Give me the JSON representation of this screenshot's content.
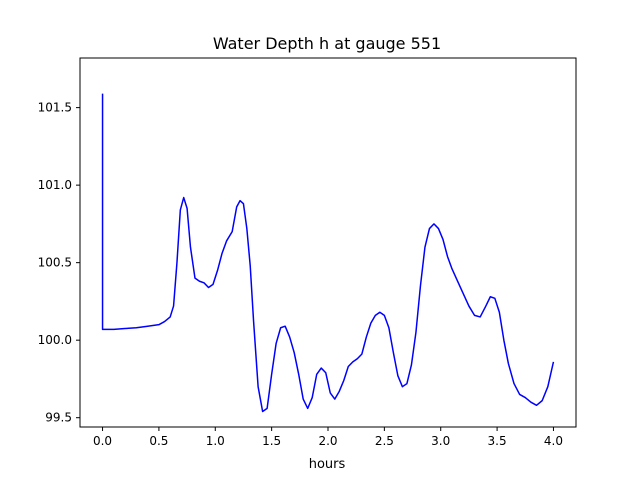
{
  "chart_data": {
    "type": "line",
    "title": "Water Depth h at gauge 551",
    "xlabel": "hours",
    "ylabel": "",
    "xlim": [
      -0.2,
      4.2
    ],
    "ylim": [
      99.44,
      101.82
    ],
    "xticks": [
      0.0,
      0.5,
      1.0,
      1.5,
      2.0,
      2.5,
      3.0,
      3.5,
      4.0
    ],
    "xtick_labels": [
      "0.0",
      "0.5",
      "1.0",
      "1.5",
      "2.0",
      "2.5",
      "3.0",
      "3.5",
      "4.0"
    ],
    "yticks": [
      99.5,
      100.0,
      100.5,
      101.0,
      101.5
    ],
    "ytick_labels": [
      "99.5",
      "100.0",
      "100.5",
      "101.0",
      "101.5"
    ],
    "grid": false,
    "legend": "none",
    "series": [
      {
        "color": "#0000ff",
        "x": [
          0.0,
          0.0,
          0.01,
          0.1,
          0.2,
          0.3,
          0.4,
          0.5,
          0.55,
          0.6,
          0.63,
          0.66,
          0.69,
          0.72,
          0.75,
          0.78,
          0.82,
          0.86,
          0.9,
          0.94,
          0.98,
          1.02,
          1.06,
          1.1,
          1.15,
          1.19,
          1.22,
          1.25,
          1.28,
          1.31,
          1.34,
          1.38,
          1.42,
          1.46,
          1.5,
          1.54,
          1.58,
          1.62,
          1.66,
          1.7,
          1.74,
          1.78,
          1.82,
          1.86,
          1.9,
          1.94,
          1.98,
          2.02,
          2.06,
          2.1,
          2.14,
          2.18,
          2.22,
          2.26,
          2.3,
          2.34,
          2.38,
          2.42,
          2.46,
          2.5,
          2.54,
          2.58,
          2.62,
          2.66,
          2.7,
          2.74,
          2.78,
          2.82,
          2.86,
          2.9,
          2.94,
          2.98,
          3.02,
          3.06,
          3.1,
          3.15,
          3.2,
          3.25,
          3.3,
          3.35,
          3.4,
          3.44,
          3.48,
          3.52,
          3.56,
          3.6,
          3.65,
          3.7,
          3.75,
          3.8,
          3.85,
          3.9,
          3.95,
          4.0
        ],
        "y": [
          101.59,
          100.07,
          100.07,
          100.07,
          100.075,
          100.08,
          100.09,
          100.1,
          100.12,
          100.15,
          100.22,
          100.5,
          100.84,
          100.92,
          100.85,
          100.6,
          100.4,
          100.38,
          100.37,
          100.34,
          100.36,
          100.45,
          100.56,
          100.64,
          100.7,
          100.86,
          100.9,
          100.88,
          100.72,
          100.48,
          100.12,
          99.7,
          99.54,
          99.56,
          99.78,
          99.98,
          100.08,
          100.09,
          100.02,
          99.92,
          99.78,
          99.62,
          99.56,
          99.63,
          99.78,
          99.82,
          99.79,
          99.66,
          99.62,
          99.67,
          99.74,
          99.83,
          99.86,
          99.88,
          99.91,
          100.02,
          100.11,
          100.16,
          100.18,
          100.16,
          100.08,
          99.92,
          99.77,
          99.7,
          99.72,
          99.84,
          100.05,
          100.35,
          100.6,
          100.72,
          100.75,
          100.72,
          100.65,
          100.54,
          100.46,
          100.38,
          100.3,
          100.22,
          100.16,
          100.15,
          100.22,
          100.28,
          100.27,
          100.18,
          100.0,
          99.85,
          99.72,
          99.65,
          99.63,
          99.6,
          99.58,
          99.61,
          99.7,
          99.86
        ]
      }
    ]
  }
}
